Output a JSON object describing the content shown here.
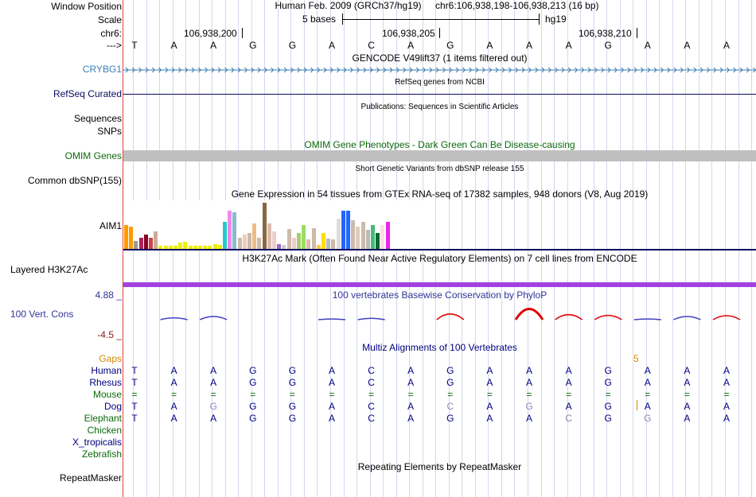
{
  "labels": {
    "window_position": "Window Position",
    "scale": "Scale",
    "chr": "chr6:",
    "arrow": "--->",
    "crybg1": "CRYBG1",
    "refseq": "RefSeq Curated",
    "sequences": "Sequences",
    "snps": "SNPs",
    "omim": "OMIM Genes",
    "dbsnp": "Common dbSNP(155)",
    "aim1": "AIM1",
    "h3k27ac": "Layered H3K27Ac",
    "cons_max": "4.88 _",
    "vertcons": "100 Vert. Cons",
    "cons_min": "-4.5 _",
    "gaps": "Gaps",
    "species": [
      "Human",
      "Rhesus",
      "Mouse",
      "Dog",
      "Elephant",
      "Chicken",
      "X_tropicalis",
      "Zebrafish"
    ],
    "repeatmasker": "RepeatMasker"
  },
  "header": {
    "assembly": "Human Feb. 2009 (GRCh37/hg19)",
    "position": "chr6:106,938,198-106,938,213 (16 bp)",
    "scale_text": "5 bases",
    "db": "hg19",
    "ticks": [
      "106,938,200",
      "106,938,205",
      "106,938,210"
    ]
  },
  "sequence": [
    "T",
    "A",
    "A",
    "G",
    "G",
    "A",
    "C",
    "A",
    "G",
    "A",
    "A",
    "A",
    "G",
    "A",
    "A",
    "A"
  ],
  "tracks": {
    "gencode": "GENCODE V49lift37 (1 items filtered out)",
    "refseq": "RefSeq genes from NCBI",
    "publications": "Publications: Sequences in Scientific Articles",
    "omim": "OMIM Gene Phenotypes - Dark Green Can Be Disease-causing",
    "dbsnp": "Short Genetic Variants from dbSNP release 155",
    "gtex": "Gene Expression in 54 tissues from GTEx RNA-seq of 17382 samples, 948 donors (V8, Aug 2019)",
    "h3k27ac": "H3K27Ac Mark (Often Found Near Active Regulatory Elements) on 7 cell lines from ENCODE",
    "phylop": "100 vertebrates Basewise Conservation by PhyloP",
    "multiz": "Multiz Alignments of 100 Vertebrates",
    "repeatmasker": "Repeating Elements by RepeatMasker",
    "gap_count": "5"
  },
  "alignment": {
    "rhesus": [
      "T",
      "A",
      "A",
      "G",
      "G",
      "A",
      "C",
      "A",
      "G",
      "A",
      "A",
      "A",
      "G",
      "A",
      "A",
      "A"
    ],
    "mouse": [
      "=",
      "=",
      "=",
      "=",
      "=",
      "=",
      "=",
      "=",
      "=",
      "=",
      "=",
      "=",
      "=",
      "=",
      "=",
      "="
    ],
    "dog": [
      "T",
      "A",
      "G",
      "G",
      "G",
      "A",
      "C",
      "A",
      "C",
      "A",
      "G",
      "A",
      "G",
      "A",
      "A",
      "A"
    ],
    "elephant": [
      "T",
      "A",
      "A",
      "G",
      "G",
      "A",
      "C",
      "A",
      "G",
      "A",
      "A",
      "C",
      "G",
      "G",
      "A",
      "A"
    ]
  },
  "gtex": {
    "heights": [
      30,
      28,
      10,
      14,
      18,
      14,
      22,
      4,
      4,
      4,
      4,
      8,
      9,
      4,
      4,
      4,
      4,
      4,
      6,
      5,
      34,
      48,
      46,
      14,
      18,
      20,
      32,
      14,
      58,
      32,
      22,
      6,
      5,
      25,
      14,
      20,
      30,
      12,
      26,
      5,
      20,
      13,
      12,
      38,
      48,
      48,
      36,
      28,
      34,
      24,
      30,
      20,
      30,
      34
    ],
    "colors": [
      "#ff9900",
      "#ff9900",
      "#999999",
      "#aa2255",
      "#880022",
      "#cc4444",
      "#ccaa99",
      "#eeee00",
      "#eeee00",
      "#eeee00",
      "#eeee00",
      "#eeee00",
      "#eeee00",
      "#eeee00",
      "#eeee00",
      "#eeee00",
      "#eeee00",
      "#eeee00",
      "#eeee00",
      "#eeee00",
      "#22cccc",
      "#ee88ee",
      "#88bbcc",
      "#ccbbaa",
      "#eeccbb",
      "#ccbbaa",
      "#eebb88",
      "#ccbbaa",
      "#886644",
      "#ddbbaa",
      "#eecccc",
      "#9966cc",
      "#cccccc",
      "#ccbbaa",
      "#eecccc",
      "#aacc66",
      "#99dd66",
      "#ddbbaa",
      "#ccbbaa",
      "#ffcc33",
      "#ffdd00",
      "#bbbbbb",
      "#ccbbaa",
      "#dddddd",
      "#2266ff",
      "#2266ff",
      "#ccbbaa",
      "#ddccbb",
      "#ccbbaa",
      "#bbbbbb",
      "#44bb77",
      "#116633",
      "#ffdddd",
      "#ee22ee"
    ]
  },
  "phylop": {
    "scores": [
      0,
      0.5,
      0.9,
      0,
      0,
      0.2,
      0.4,
      0,
      1.6,
      0,
      3.0,
      1.4,
      1.2,
      0.2,
      0.9,
      1.1
    ],
    "max": 4.88,
    "min": -4.5
  }
}
